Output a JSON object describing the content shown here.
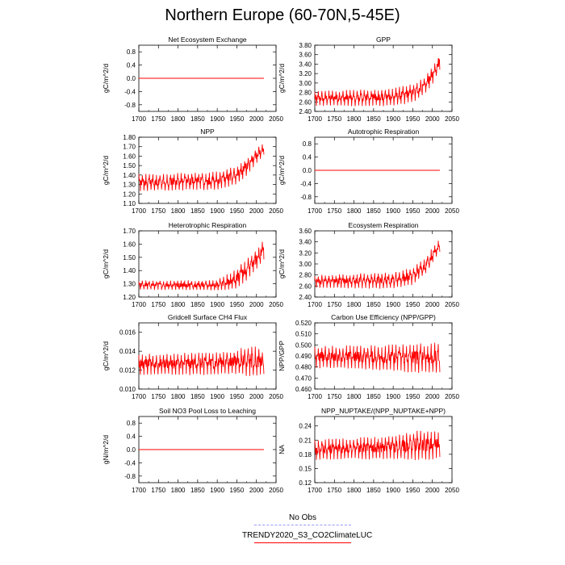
{
  "title": "Northern Europe (60-70N,5-45E)",
  "legend": [
    {
      "label": "No Obs",
      "color": "#9999ff",
      "style": "dashed"
    },
    {
      "label": "TRENDY2020_S3_CO2ClimateLUC",
      "color": "#ff0000",
      "style": "solid"
    }
  ],
  "chart_data": [
    {
      "type": "line",
      "title": "Net Ecosystem Exchange",
      "xlabel": "",
      "ylabel": "gC/m^2/d",
      "xlim": [
        1700,
        2050
      ],
      "ylim": [
        -1.0,
        1.0
      ],
      "xticks": [
        1700,
        1750,
        1800,
        1850,
        1900,
        1950,
        2000,
        2050
      ],
      "yticks": [
        -0.8,
        -0.4,
        0.0,
        0.4,
        0.8
      ],
      "ytick_labels": [
        "-0.8",
        "-0.4",
        "0.0",
        "0.4",
        "0.8"
      ],
      "series": [
        {
          "name": "TRENDY2020_S3_CO2ClimateLUC",
          "kind": "flat",
          "x": [
            1700,
            2019
          ],
          "y": [
            0.0,
            0.0
          ]
        }
      ]
    },
    {
      "type": "line",
      "title": "GPP",
      "xlabel": "",
      "ylabel": "gC/m^2/d",
      "xlim": [
        1700,
        2050
      ],
      "ylim": [
        2.4,
        3.8
      ],
      "xticks": [
        1700,
        1750,
        1800,
        1850,
        1900,
        1950,
        2000,
        2050
      ],
      "yticks": [
        2.4,
        2.6,
        2.8,
        3.0,
        3.2,
        3.4,
        3.6,
        3.8
      ],
      "ytick_labels": [
        "2.40",
        "2.60",
        "2.80",
        "3.00",
        "3.20",
        "3.40",
        "3.60",
        "3.80"
      ],
      "series": [
        {
          "name": "TRENDY2020_S3_CO2ClimateLUC",
          "kind": "noisy",
          "x": [
            1700,
            2019
          ],
          "trend": [
            [
              1700,
              2.67
            ],
            [
              1900,
              2.7
            ],
            [
              1950,
              2.78
            ],
            [
              1980,
              2.95
            ],
            [
              2000,
              3.15
            ],
            [
              2019,
              3.45
            ]
          ],
          "amp": [
            [
              1700,
              0.16
            ],
            [
              1950,
              0.2
            ],
            [
              2019,
              0.18
            ]
          ],
          "range": [
            2.45,
            3.62
          ]
        }
      ]
    },
    {
      "type": "line",
      "title": "NPP",
      "xlabel": "",
      "ylabel": "gC/m^2/d",
      "xlim": [
        1700,
        2050
      ],
      "ylim": [
        1.1,
        1.8
      ],
      "xticks": [
        1700,
        1750,
        1800,
        1850,
        1900,
        1950,
        2000,
        2050
      ],
      "yticks": [
        1.1,
        1.2,
        1.3,
        1.4,
        1.5,
        1.6,
        1.7,
        1.8
      ],
      "ytick_labels": [
        "1.10",
        "1.20",
        "1.30",
        "1.40",
        "1.50",
        "1.60",
        "1.70",
        "1.80"
      ],
      "series": [
        {
          "name": "TRENDY2020_S3_CO2ClimateLUC",
          "kind": "noisy",
          "x": [
            1700,
            2019
          ],
          "trend": [
            [
              1700,
              1.32
            ],
            [
              1900,
              1.34
            ],
            [
              1950,
              1.4
            ],
            [
              1980,
              1.5
            ],
            [
              2000,
              1.6
            ],
            [
              2019,
              1.68
            ]
          ],
          "amp": [
            [
              1700,
              0.09
            ],
            [
              1950,
              0.1
            ],
            [
              2019,
              0.07
            ]
          ],
          "range": [
            1.18,
            1.75
          ]
        }
      ]
    },
    {
      "type": "line",
      "title": "Autotrophic Respiration",
      "xlabel": "",
      "ylabel": "gC/m^2/d",
      "xlim": [
        1700,
        2050
      ],
      "ylim": [
        -1.0,
        1.0
      ],
      "xticks": [
        1700,
        1750,
        1800,
        1850,
        1900,
        1950,
        2000,
        2050
      ],
      "yticks": [
        -0.8,
        -0.4,
        0.0,
        0.4,
        0.8
      ],
      "ytick_labels": [
        "-0.8",
        "-0.4",
        "0.0",
        "0.4",
        "0.8"
      ],
      "series": [
        {
          "name": "TRENDY2020_S3_CO2ClimateLUC",
          "kind": "flat",
          "x": [
            1700,
            2019
          ],
          "y": [
            0.0,
            0.0
          ]
        }
      ]
    },
    {
      "type": "line",
      "title": "Heterotrophic Respiration",
      "xlabel": "",
      "ylabel": "gC/m^2/d",
      "xlim": [
        1700,
        2050
      ],
      "ylim": [
        1.2,
        1.7
      ],
      "xticks": [
        1700,
        1750,
        1800,
        1850,
        1900,
        1950,
        2000,
        2050
      ],
      "yticks": [
        1.2,
        1.3,
        1.4,
        1.5,
        1.6,
        1.7
      ],
      "ytick_labels": [
        "1.20",
        "1.30",
        "1.40",
        "1.50",
        "1.60",
        "1.70"
      ],
      "series": [
        {
          "name": "TRENDY2020_S3_CO2ClimateLUC",
          "kind": "noisy",
          "x": [
            1700,
            2019
          ],
          "trend": [
            [
              1700,
              1.29
            ],
            [
              1900,
              1.29
            ],
            [
              1950,
              1.34
            ],
            [
              1980,
              1.42
            ],
            [
              2000,
              1.48
            ],
            [
              2019,
              1.56
            ]
          ],
          "amp": [
            [
              1700,
              0.035
            ],
            [
              1900,
              0.04
            ],
            [
              1950,
              0.08
            ],
            [
              2019,
              0.08
            ]
          ],
          "range": [
            1.23,
            1.66
          ]
        }
      ]
    },
    {
      "type": "line",
      "title": "Ecosystem Respiration",
      "xlabel": "",
      "ylabel": "gC/m^2/d",
      "xlim": [
        1700,
        2050
      ],
      "ylim": [
        2.4,
        3.6
      ],
      "xticks": [
        1700,
        1750,
        1800,
        1850,
        1900,
        1950,
        2000,
        2050
      ],
      "yticks": [
        2.4,
        2.6,
        2.8,
        3.0,
        3.2,
        3.4,
        3.6
      ],
      "ytick_labels": [
        "2.40",
        "2.60",
        "2.80",
        "3.00",
        "3.20",
        "3.40",
        "3.60"
      ],
      "series": [
        {
          "name": "TRENDY2020_S3_CO2ClimateLUC",
          "kind": "noisy",
          "x": [
            1700,
            2019
          ],
          "trend": [
            [
              1700,
              2.68
            ],
            [
              1900,
              2.7
            ],
            [
              1950,
              2.78
            ],
            [
              1980,
              2.95
            ],
            [
              2000,
              3.15
            ],
            [
              2019,
              3.35
            ]
          ],
          "amp": [
            [
              1700,
              0.12
            ],
            [
              1950,
              0.16
            ],
            [
              2019,
              0.14
            ]
          ],
          "range": [
            2.5,
            3.45
          ]
        }
      ]
    },
    {
      "type": "line",
      "title": "Gridcell Surface CH4 Flux",
      "xlabel": "",
      "ylabel": "gC/m^2/d",
      "xlim": [
        1700,
        2050
      ],
      "ylim": [
        0.01,
        0.017
      ],
      "xticks": [
        1700,
        1750,
        1800,
        1850,
        1900,
        1950,
        2000,
        2050
      ],
      "yticks": [
        0.01,
        0.012,
        0.014,
        0.016
      ],
      "ytick_labels": [
        "0.010",
        "0.012",
        "0.014",
        "0.016"
      ],
      "series": [
        {
          "name": "TRENDY2020_S3_CO2ClimateLUC",
          "kind": "noisy",
          "x": [
            1700,
            2019
          ],
          "trend": [
            [
              1700,
              0.0126
            ],
            [
              1900,
              0.0127
            ],
            [
              1980,
              0.013
            ],
            [
              2019,
              0.0128
            ]
          ],
          "amp": [
            [
              1700,
              0.0011
            ],
            [
              1950,
              0.0013
            ],
            [
              1985,
              0.0018
            ],
            [
              2019,
              0.0012
            ]
          ],
          "range": [
            0.011,
            0.0163
          ]
        }
      ]
    },
    {
      "type": "line",
      "title": "Carbon Use Efficiency (NPP/GPP)",
      "xlabel": "",
      "ylabel": "NPP/GPP",
      "xlim": [
        1700,
        2050
      ],
      "ylim": [
        0.46,
        0.52
      ],
      "xticks": [
        1700,
        1750,
        1800,
        1850,
        1900,
        1950,
        2000,
        2050
      ],
      "yticks": [
        0.46,
        0.47,
        0.48,
        0.49,
        0.5,
        0.51,
        0.52
      ],
      "ytick_labels": [
        "0.460",
        "0.470",
        "0.480",
        "0.490",
        "0.500",
        "0.510",
        "0.520"
      ],
      "series": [
        {
          "name": "TRENDY2020_S3_CO2ClimateLUC",
          "kind": "noisy",
          "x": [
            1700,
            2019
          ],
          "trend": [
            [
              1700,
              0.489
            ],
            [
              2019,
              0.488
            ]
          ],
          "amp": [
            [
              1700,
              0.01
            ],
            [
              1900,
              0.012
            ],
            [
              1950,
              0.014
            ],
            [
              2019,
              0.014
            ]
          ],
          "range": [
            0.464,
            0.515
          ]
        }
      ]
    },
    {
      "type": "line",
      "title": "Soil NO3 Pool Loss to Leaching",
      "xlabel": "",
      "ylabel": "gN/m^2/d",
      "xlim": [
        1700,
        2050
      ],
      "ylim": [
        -1.0,
        1.0
      ],
      "xticks": [
        1700,
        1750,
        1800,
        1850,
        1900,
        1950,
        2000,
        2050
      ],
      "yticks": [
        -0.8,
        -0.4,
        0.0,
        0.4,
        0.8
      ],
      "ytick_labels": [
        "-0.8",
        "-0.4",
        "0.0",
        "0.4",
        "0.8"
      ],
      "series": [
        {
          "name": "TRENDY2020_S3_CO2ClimateLUC",
          "kind": "flat",
          "x": [
            1700,
            2019
          ],
          "y": [
            0.0,
            0.0
          ]
        }
      ]
    },
    {
      "type": "line",
      "title": "NPP_NUPTAKE/(NPP_NUPTAKE+NPP)",
      "xlabel": "",
      "ylabel": "NA",
      "xlim": [
        1700,
        2050
      ],
      "ylim": [
        0.12,
        0.26
      ],
      "xticks": [
        1700,
        1750,
        1800,
        1850,
        1900,
        1950,
        2000,
        2050
      ],
      "yticks": [
        0.12,
        0.15,
        0.18,
        0.21,
        0.24
      ],
      "ytick_labels": [
        "0.12",
        "0.15",
        "0.18",
        "0.21",
        "0.24"
      ],
      "series": [
        {
          "name": "TRENDY2020_S3_CO2ClimateLUC",
          "kind": "noisy",
          "x": [
            1700,
            2019
          ],
          "trend": [
            [
              1700,
              0.19
            ],
            [
              1900,
              0.195
            ],
            [
              1950,
              0.198
            ],
            [
              2019,
              0.2
            ]
          ],
          "amp": [
            [
              1700,
              0.022
            ],
            [
              1900,
              0.025
            ],
            [
              1950,
              0.032
            ],
            [
              2019,
              0.03
            ]
          ],
          "range": [
            0.13,
            0.25
          ]
        }
      ]
    }
  ]
}
